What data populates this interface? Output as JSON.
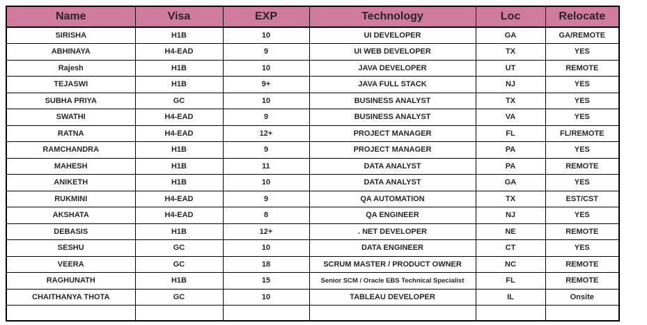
{
  "colors": {
    "header_bg": "#cf7a9e",
    "border": "#000000",
    "text": "#262626"
  },
  "table": {
    "headers": [
      "Name",
      "Visa",
      "EXP",
      "Technology",
      "Loc",
      "Relocate"
    ],
    "rows": [
      {
        "name": "SIRISHA",
        "visa": "H1B",
        "exp": "10",
        "technology": "UI DEVELOPER",
        "loc": "GA",
        "relocate": "GA/REMOTE"
      },
      {
        "name": "ABHINAYA",
        "visa": "H4-EAD",
        "exp": "9",
        "technology": "UI WEB DEVELOPER",
        "loc": "TX",
        "relocate": "YES"
      },
      {
        "name": "Rajesh",
        "visa": "H1B",
        "exp": "10",
        "technology": "JAVA DEVELOPER",
        "loc": "UT",
        "relocate": "REMOTE"
      },
      {
        "name": "TEJASWI",
        "visa": "H1B",
        "exp": "9+",
        "technology": "JAVA FULL STACK",
        "loc": "NJ",
        "relocate": "YES"
      },
      {
        "name": "SUBHA PRIYA",
        "visa": "GC",
        "exp": "10",
        "technology": "BUSINESS ANALYST",
        "loc": "TX",
        "relocate": "YES"
      },
      {
        "name": "SWATHI",
        "visa": "H4-EAD",
        "exp": "9",
        "technology": "BUSINESS ANALYST",
        "loc": "VA",
        "relocate": "YES"
      },
      {
        "name": "RATNA",
        "visa": "H4-EAD",
        "exp": "12+",
        "technology": "PROJECT MANAGER",
        "loc": "FL",
        "relocate": "FL/REMOTE"
      },
      {
        "name": "RAMCHANDRA",
        "visa": "H1B",
        "exp": "9",
        "technology": "PROJECT MANAGER",
        "loc": "PA",
        "relocate": "YES"
      },
      {
        "name": "MAHESH",
        "visa": "H1B",
        "exp": "11",
        "technology": "DATA ANALYST",
        "loc": "PA",
        "relocate": "REMOTE"
      },
      {
        "name": "ANIKETH",
        "visa": "H1B",
        "exp": "10",
        "technology": "DATA ANALYST",
        "loc": "GA",
        "relocate": "YES"
      },
      {
        "name": "RUKMINI",
        "visa": "H4-EAD",
        "exp": "9",
        "technology": "QA AUTOMATION",
        "loc": "TX",
        "relocate": "EST/CST"
      },
      {
        "name": "AKSHATA",
        "visa": "H4-EAD",
        "exp": "8",
        "technology": "QA ENGINEER",
        "loc": "NJ",
        "relocate": "YES"
      },
      {
        "name": "DEBASIS",
        "visa": "H1B",
        "exp": "12+",
        "technology": ". NET DEVELOPER",
        "loc": "NE",
        "relocate": "REMOTE"
      },
      {
        "name": "SESHU",
        "visa": "GC",
        "exp": "10",
        "technology": "DATA ENGINEER",
        "loc": "CT",
        "relocate": "YES"
      },
      {
        "name": "VEERA",
        "visa": "GC",
        "exp": "18",
        "technology": "SCRUM MASTER / PRODUCT OWNER",
        "loc": "NC",
        "relocate": "REMOTE"
      },
      {
        "name": "RAGHUNATH",
        "visa": "H1B",
        "exp": "15",
        "technology": "Senior SCM / Oracle EBS Technical Specialist",
        "loc": "FL",
        "relocate": "REMOTE"
      },
      {
        "name": "CHAITHANYA THOTA",
        "visa": "GC",
        "exp": "10",
        "technology": "TABLEAU DEVELOPER",
        "loc": "IL",
        "relocate": "Onsite"
      }
    ]
  }
}
